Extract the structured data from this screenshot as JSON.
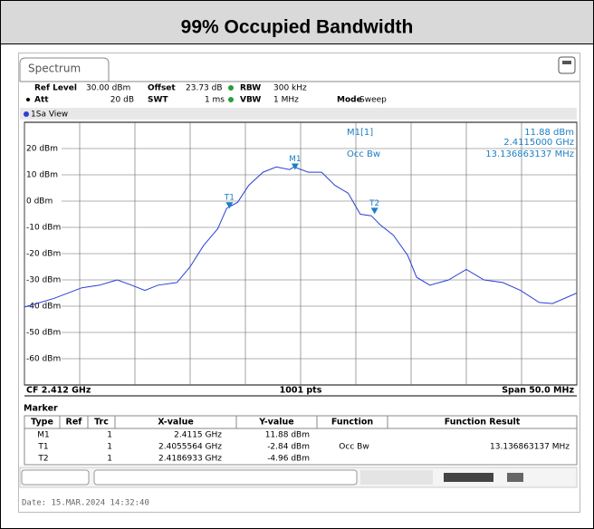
{
  "title": "99% Occupied Bandwidth",
  "tab": "Spectrum",
  "settings": [
    "Ref Level",
    "30.00 dBm",
    "Offset",
    "23.73 dB",
    "RBW",
    "300 kHz",
    "Att",
    "20 dB",
    "SWT",
    "1 ms",
    "VBW",
    "1 MHz",
    "Mode",
    "Sweep"
  ],
  "chart_data": {
    "type": "line",
    "view_label": "1Sa View",
    "readout": [
      "M1[1]",
      "11.88 dBm",
      "2.4115000 GHz",
      "Occ Bw",
      "13.136863137 MHz"
    ],
    "footer": [
      "CF 2.412 GHz",
      "1001 pts",
      "Span 50.0 MHz"
    ],
    "color": "#2a3fd6",
    "grid": true,
    "xlim": [
      2.387,
      2.437
    ],
    "ylim": [
      -70,
      30
    ],
    "xticks": [
      2.387,
      2.392,
      2.397,
      2.402,
      2.407,
      2.412,
      2.417,
      2.422,
      2.427,
      2.432,
      2.437
    ],
    "yticks": [
      {
        "value": 20,
        "label": "20 dBm"
      },
      {
        "value": 10,
        "label": "10 dBm"
      },
      {
        "value": 0,
        "label": "0 dBm"
      },
      {
        "value": -10,
        "label": "-10 dBm"
      },
      {
        "value": -20,
        "label": "-20 dBm"
      },
      {
        "value": -30,
        "label": "-30 dBm"
      },
      {
        "value": -40,
        "label": "-40 dBm"
      },
      {
        "value": -50,
        "label": "-50 dBm"
      },
      {
        "value": -60,
        "label": "-60 dBm"
      }
    ],
    "x": [
      2.387,
      2.3881,
      2.3897,
      2.3922,
      2.3938,
      2.3954,
      2.3967,
      2.3979,
      2.3991,
      2.4008,
      2.402,
      2.4032,
      2.4045,
      2.4053,
      2.4063,
      2.4073,
      2.4086,
      2.4098,
      2.411,
      2.4114,
      2.4127,
      2.4139,
      2.4151,
      2.4163,
      2.4174,
      2.4184,
      2.4192,
      2.4204,
      2.4217,
      2.4225,
      2.4237,
      2.4254,
      2.427,
      2.4286,
      2.4303,
      2.4319,
      2.4336,
      2.4348,
      2.437
    ],
    "values": [
      -40.3,
      -39,
      -37,
      -33,
      -32,
      -30,
      -32,
      -34,
      -32,
      -31,
      -25,
      -17,
      -10.5,
      -2.8,
      -0.4,
      6,
      11,
      13,
      12,
      13,
      11,
      11,
      6,
      3,
      -5,
      -5.6,
      -9,
      -13,
      -20.7,
      -29,
      -32,
      -30,
      -26,
      -30,
      -31,
      -34,
      -38.6,
      -39,
      -35
    ],
    "markers": [
      {
        "label": "M1",
        "x": 2.4115,
        "y": 11.88
      },
      {
        "label": "T1",
        "x": 2.4055564,
        "y": -2.84
      },
      {
        "label": "T2",
        "x": 2.4186933,
        "y": -4.96
      }
    ]
  },
  "marker_table": {
    "title": "Marker",
    "header": [
      "Type",
      "Ref",
      "Trc",
      "X-value",
      "Y-value",
      "Function",
      "Function Result"
    ],
    "rows": [
      [
        "M1",
        "1",
        "2.4115 GHz",
        "11.88 dBm"
      ],
      [
        "T1",
        "1",
        "2.4055564 GHz",
        "-2.84 dBm",
        "Occ Bw",
        "13.136863137 MHz"
      ],
      [
        "T2",
        "1",
        "2.4186933 GHz",
        "-4.96 dBm"
      ]
    ]
  },
  "date": "Date: 15.MAR.2024  14:32:40"
}
